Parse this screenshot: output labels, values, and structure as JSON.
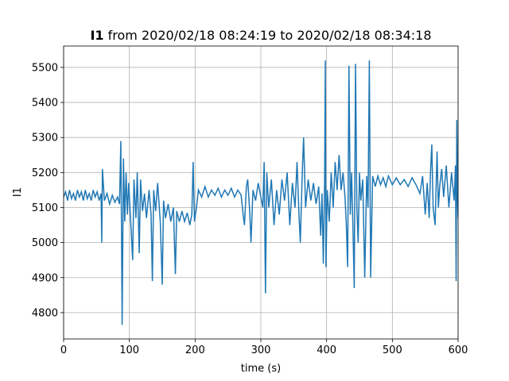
{
  "chart_data": {
    "type": "line",
    "title": {
      "bold": "I1",
      "rest": "from 2020/02/18 08:24:19 to 2020/02/18 08:34:18"
    },
    "x_label": "time (s)",
    "y_label": "I1",
    "xlim": [
      0,
      600
    ],
    "ylim": [
      4725,
      5561
    ],
    "xticks": [
      0,
      100,
      200,
      300,
      400,
      500,
      600
    ],
    "yticks": [
      4800,
      4900,
      5000,
      5100,
      5200,
      5300,
      5400,
      5500
    ],
    "grid": true,
    "series": [
      {
        "name": "I1",
        "color": "#1f77b4",
        "x": [
          0,
          3,
          6,
          9,
          12,
          15,
          18,
          21,
          24,
          27,
          30,
          33,
          36,
          39,
          42,
          45,
          48,
          51,
          54,
          57,
          58,
          59,
          62,
          66,
          70,
          74,
          78,
          82,
          85,
          87,
          88,
          89,
          91,
          93,
          95,
          97,
          99,
          102,
          105,
          107,
          110,
          112,
          115,
          117,
          120,
          123,
          126,
          130,
          133,
          135,
          137,
          140,
          143,
          147,
          150,
          152,
          155,
          159,
          163,
          167,
          170,
          172,
          176,
          180,
          184,
          188,
          192,
          195,
          197,
          199,
          202,
          205,
          210,
          215,
          220,
          225,
          230,
          235,
          240,
          245,
          250,
          255,
          260,
          265,
          270,
          273,
          275,
          278,
          280,
          283,
          285,
          288,
          292,
          296,
          300,
          303,
          305,
          307,
          309,
          312,
          316,
          320,
          324,
          328,
          332,
          336,
          340,
          344,
          348,
          352,
          355,
          358,
          360,
          363,
          365,
          368,
          372,
          376,
          380,
          384,
          388,
          391,
          393,
          395,
          397,
          398,
          399,
          401,
          404,
          407,
          410,
          413,
          416,
          419,
          422,
          425,
          428,
          430,
          432,
          434,
          436,
          438,
          440,
          442,
          444,
          446,
          448,
          450,
          452,
          455,
          458,
          461,
          463,
          465,
          467,
          470,
          474,
          478,
          482,
          486,
          490,
          494,
          500,
          506,
          512,
          518,
          524,
          530,
          536,
          542,
          546,
          550,
          553,
          556,
          558,
          560,
          562,
          565,
          568,
          570,
          572,
          575,
          578,
          582,
          586,
          590,
          594,
          596,
          597,
          598,
          599,
          600
        ],
        "values": [
          5130,
          5145,
          5120,
          5150,
          5125,
          5140,
          5120,
          5150,
          5130,
          5145,
          5120,
          5150,
          5125,
          5140,
          5120,
          5150,
          5130,
          5145,
          5120,
          5140,
          5000,
          5210,
          5120,
          5140,
          5110,
          5135,
          5115,
          5130,
          5110,
          5290,
          5050,
          4765,
          5240,
          5060,
          5200,
          5080,
          5170,
          5060,
          4950,
          5180,
          5070,
          5200,
          4970,
          5180,
          5090,
          5140,
          5070,
          5150,
          5080,
          4890,
          5150,
          5090,
          5170,
          5060,
          4880,
          5120,
          5070,
          5110,
          5060,
          5100,
          4910,
          5090,
          5060,
          5090,
          5060,
          5085,
          5050,
          5080,
          5230,
          5060,
          5100,
          5150,
          5130,
          5160,
          5130,
          5150,
          5135,
          5155,
          5130,
          5150,
          5135,
          5155,
          5130,
          5150,
          5135,
          5080,
          5050,
          5160,
          5180,
          5090,
          5000,
          5150,
          5120,
          5170,
          5130,
          5100,
          5230,
          4855,
          5200,
          5100,
          5180,
          5050,
          5150,
          5080,
          5180,
          5120,
          5200,
          5050,
          5170,
          5100,
          5230,
          5080,
          5000,
          5200,
          5300,
          5100,
          5180,
          5120,
          5170,
          5110,
          5160,
          5020,
          5140,
          4940,
          5180,
          5520,
          4930,
          5150,
          5060,
          5200,
          5100,
          5230,
          5150,
          5250,
          5150,
          5200,
          5130,
          5050,
          4930,
          5505,
          5080,
          5200,
          5050,
          4870,
          5510,
          5100,
          5000,
          5200,
          5120,
          5180,
          4900,
          5190,
          5100,
          5520,
          4900,
          5190,
          5160,
          5190,
          5165,
          5185,
          5160,
          5190,
          5165,
          5185,
          5165,
          5180,
          5160,
          5185,
          5165,
          5140,
          5190,
          5080,
          5170,
          5070,
          5200,
          5280,
          5100,
          5050,
          5260,
          5100,
          5160,
          5210,
          5130,
          5220,
          5100,
          5200,
          5120,
          5220,
          4890,
          5350,
          5130,
          5070
        ]
      }
    ]
  }
}
